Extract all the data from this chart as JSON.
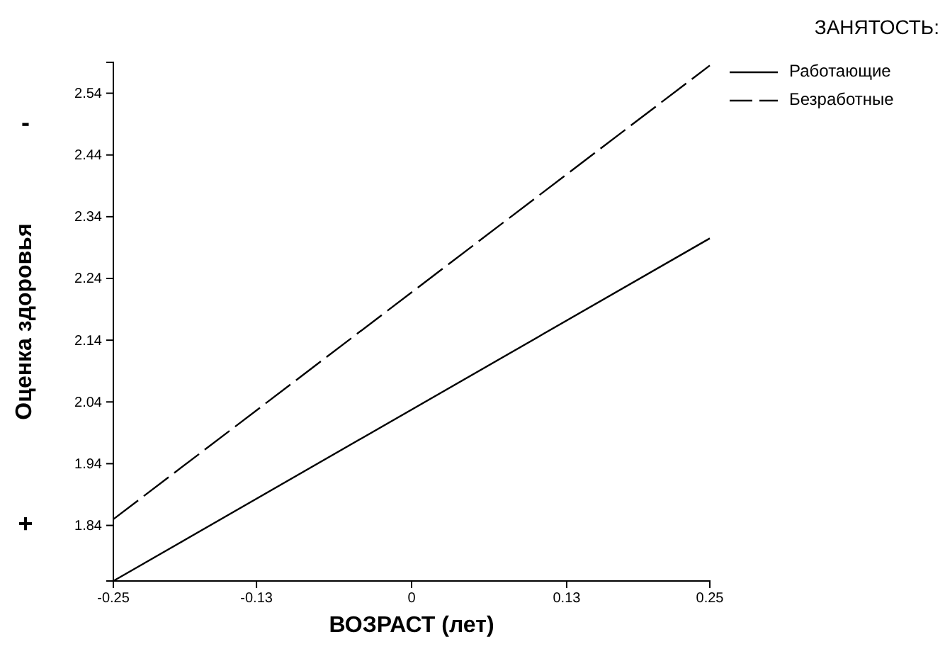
{
  "chart_data": {
    "type": "line",
    "xlabel": "ВОЗРАСТ (лет)",
    "ylabel": "Оценка здоровья",
    "legend_title": "ЗАНЯТОСТЬ:",
    "legend": "top right",
    "grid": false,
    "marker": "none",
    "x": [
      -0.25,
      0.25
    ],
    "xlim": [
      -0.25,
      0.25
    ],
    "xticks": [
      -0.25,
      -0.13,
      0,
      0.13,
      0.25
    ],
    "ylim": [
      1.75,
      2.59
    ],
    "yticks": [
      1.84,
      1.94,
      2.04,
      2.14,
      2.24,
      2.34,
      2.44,
      2.54
    ],
    "annotations": [
      "-",
      "+"
    ],
    "series": [
      {
        "name": "Работающие",
        "color": "#000000",
        "values": [
          1.75,
          2.305
        ],
        "line_style": "solid"
      },
      {
        "name": "Безработные",
        "color": "#000000",
        "values": [
          1.85,
          2.585
        ],
        "line_style": "dashed"
      }
    ]
  }
}
